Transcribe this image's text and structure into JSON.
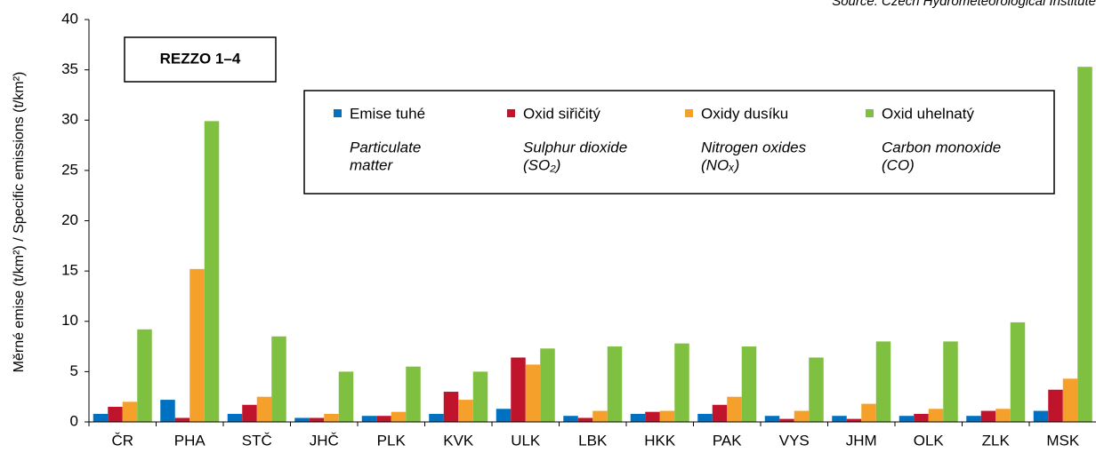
{
  "chart_data": {
    "type": "bar",
    "source": "Source: Czech Hydrometeorological Institute",
    "annotation": "REZZO  1–4",
    "y_label": "Měrné emise  (t/km²) / Specific emissions (t/km²)",
    "categories": [
      "ČR",
      "PHA",
      "STČ",
      "JHČ",
      "PLK",
      "KVK",
      "ULK",
      "LBK",
      "HKK",
      "PAK",
      "VYS",
      "JHM",
      "OLK",
      "ZLK",
      "MSK"
    ],
    "series": [
      {
        "name": "Emise tuhé",
        "name_en": [
          "Particulate",
          "matter"
        ],
        "color": "#0070c0",
        "values": [
          0.8,
          2.2,
          0.8,
          0.4,
          0.6,
          0.8,
          1.3,
          0.6,
          0.8,
          0.8,
          0.6,
          0.6,
          0.6,
          0.6,
          1.1
        ]
      },
      {
        "name": "Oxid siřičitý",
        "name_en": [
          "Sulphur dioxide",
          "(SO₂)"
        ],
        "color": "#c0142c",
        "values": [
          1.5,
          0.4,
          1.7,
          0.4,
          0.6,
          3.0,
          6.4,
          0.4,
          1.0,
          1.7,
          0.3,
          0.3,
          0.8,
          1.1,
          3.2
        ]
      },
      {
        "name": "Oxidy dusíku",
        "name_en": [
          "Nitrogen oxides",
          "(NOₓ)"
        ],
        "color": "#f5a02a",
        "values": [
          2.0,
          15.2,
          2.5,
          0.8,
          1.0,
          2.2,
          5.7,
          1.1,
          1.1,
          2.5,
          1.1,
          1.8,
          1.3,
          1.3,
          4.3
        ]
      },
      {
        "name": "Oxid uhelnatý",
        "name_en": [
          "Carbon monoxide",
          "(CO)"
        ],
        "color": "#80c040",
        "values": [
          9.2,
          29.9,
          8.5,
          5.0,
          5.5,
          5.0,
          7.3,
          7.5,
          7.8,
          7.5,
          6.4,
          8.0,
          8.0,
          9.9,
          35.3
        ]
      }
    ],
    "ylim": [
      0,
      40
    ],
    "yticks": [
      0,
      5,
      10,
      15,
      20,
      25,
      30,
      35,
      40
    ]
  }
}
